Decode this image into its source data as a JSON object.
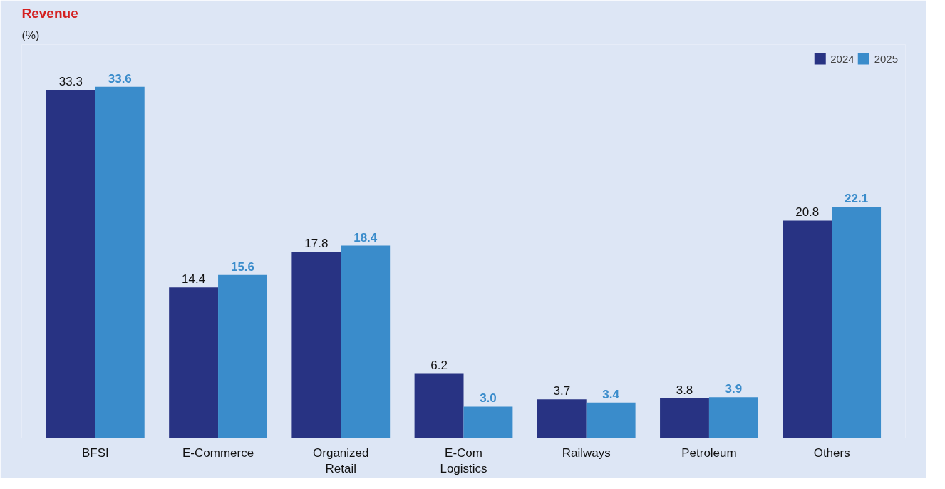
{
  "chart_data": {
    "type": "bar",
    "title": "Revenue",
    "subtitle": "(%)",
    "categories": [
      "BFSI",
      "E-Commerce",
      "Organized Retail",
      "E-Com Logistics",
      "Railways",
      "Petroleum",
      "Others"
    ],
    "series": [
      {
        "name": "2024",
        "color": "#283383",
        "values": [
          33.3,
          14.4,
          17.8,
          6.2,
          3.7,
          3.8,
          20.8
        ]
      },
      {
        "name": "2025",
        "color": "#3a8ccb",
        "values": [
          33.6,
          15.6,
          18.4,
          3.0,
          3.4,
          3.9,
          22.1
        ],
        "value_labels": [
          "33.6",
          "15.6",
          "18.4",
          "3.0",
          "3.4",
          "3.9",
          "22.1"
        ]
      }
    ],
    "data_labels": true,
    "legend": "top right",
    "grid": false
  }
}
